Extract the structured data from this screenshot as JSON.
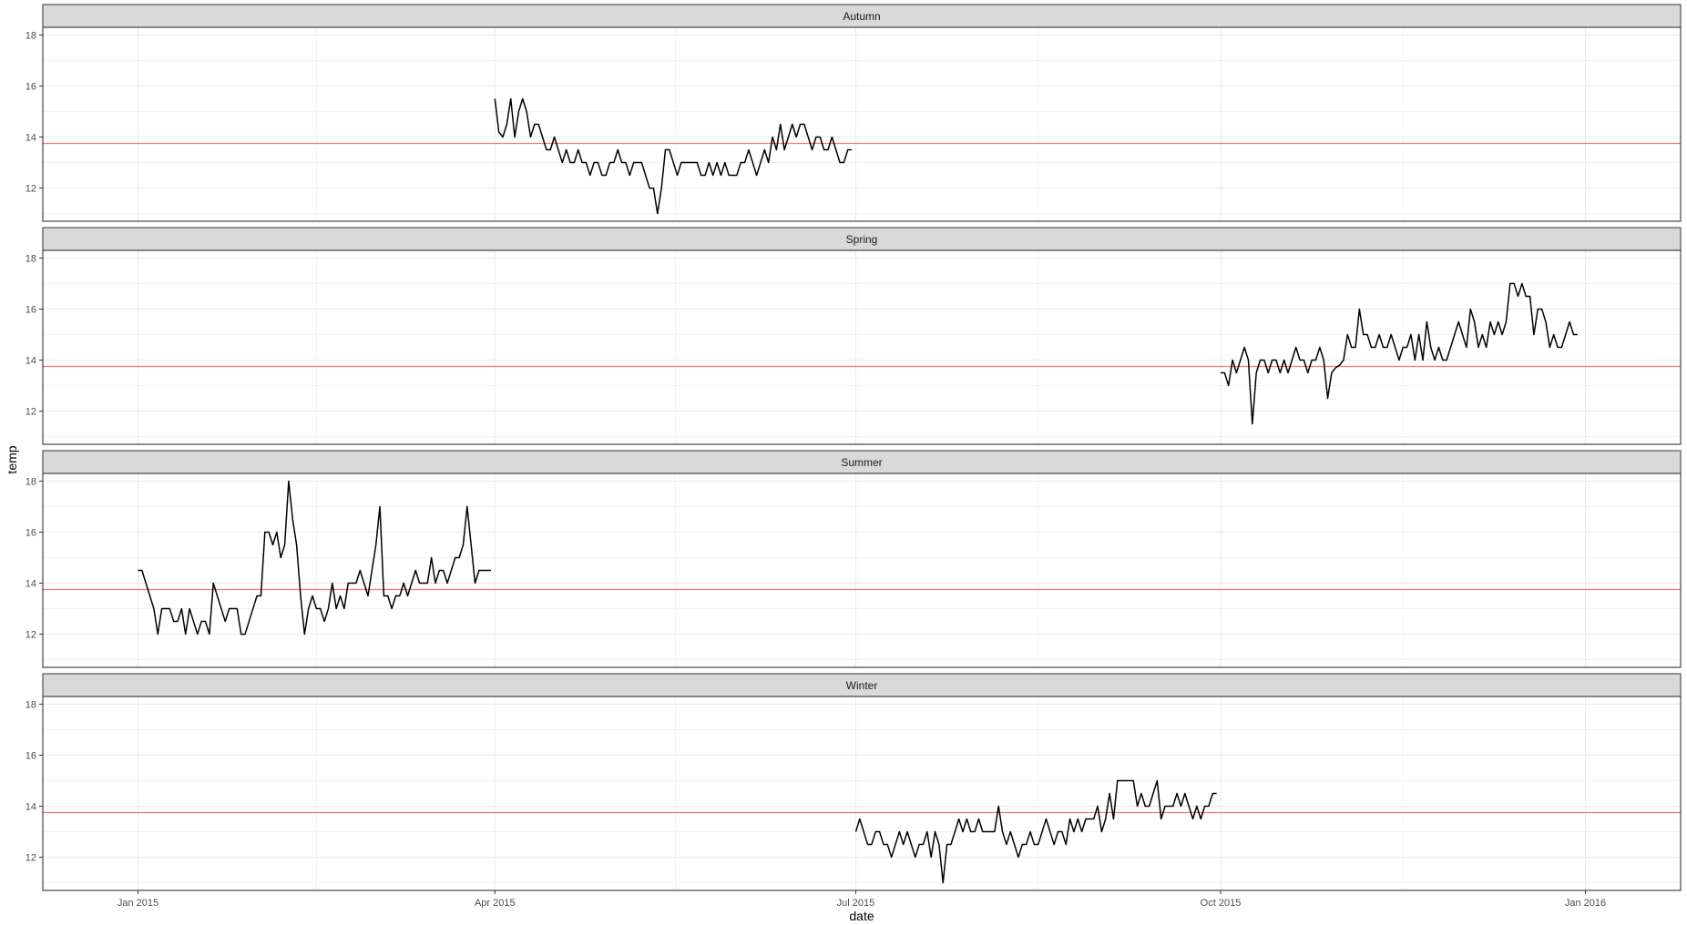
{
  "chart_data": {
    "type": "line",
    "facet_by": "season",
    "xlabel": "date",
    "ylabel": "temp",
    "x_ticks": [
      "Jan 2015",
      "Apr 2015",
      "Jul 2015",
      "Oct 2015",
      "Jan 2016"
    ],
    "x_tick_dates": [
      "2015-01-01",
      "2015-04-01",
      "2015-07-01",
      "2015-10-01",
      "2016-01-01"
    ],
    "xlim": [
      "2014-12-08",
      "2016-01-25"
    ],
    "y_ticks": [
      12,
      14,
      16,
      18
    ],
    "ylim": [
      10.7,
      18.3
    ],
    "reference_line": {
      "y": 13.75,
      "color": "#f8766d"
    },
    "line_color": "#000000",
    "grid": true,
    "panels": [
      {
        "label": "Autumn",
        "start": "2015-04-01",
        "values": [
          15.5,
          14.2,
          14.0,
          14.5,
          15.5,
          14.0,
          15.0,
          15.5,
          15.0,
          14.0,
          14.5,
          14.5,
          14.0,
          13.5,
          13.5,
          14.0,
          13.5,
          13.0,
          13.5,
          13.0,
          13.0,
          13.5,
          13.0,
          13.0,
          12.5,
          13.0,
          13.0,
          12.5,
          12.5,
          13.0,
          13.0,
          13.5,
          13.0,
          13.0,
          12.5,
          13.0,
          13.0,
          13.0,
          12.5,
          12.0,
          12.0,
          11.0,
          12.0,
          13.5,
          13.5,
          13.0,
          12.5,
          13.0,
          13.0,
          13.0,
          13.0,
          13.0,
          12.5,
          12.5,
          13.0,
          12.5,
          13.0,
          12.5,
          13.0,
          12.5,
          12.5,
          12.5,
          13.0,
          13.0,
          13.5,
          13.0,
          12.5,
          13.0,
          13.5,
          13.0,
          14.0,
          13.5,
          14.5,
          13.5,
          14.0,
          14.5,
          14.0,
          14.5,
          14.5,
          14.0,
          13.5,
          14.0,
          14.0,
          13.5,
          13.5,
          14.0,
          13.5,
          13.0,
          13.0,
          13.5,
          13.5
        ]
      },
      {
        "label": "Spring",
        "start": "2015-10-01",
        "values": [
          13.5,
          13.5,
          13.0,
          14.0,
          13.5,
          14.0,
          14.5,
          14.0,
          11.5,
          13.5,
          14.0,
          14.0,
          13.5,
          14.0,
          14.0,
          13.5,
          14.0,
          13.5,
          14.0,
          14.5,
          14.0,
          14.0,
          13.5,
          14.0,
          14.0,
          14.5,
          14.0,
          12.5,
          13.5,
          13.7,
          13.8,
          14.0,
          15.0,
          14.5,
          14.5,
          16.0,
          15.0,
          15.0,
          14.5,
          14.5,
          15.0,
          14.5,
          14.5,
          15.0,
          14.5,
          14.0,
          14.5,
          14.5,
          15.0,
          14.0,
          15.0,
          14.0,
          15.5,
          14.5,
          14.0,
          14.5,
          14.0,
          14.0,
          14.5,
          15.0,
          15.5,
          15.0,
          14.5,
          16.0,
          15.5,
          14.5,
          15.0,
          14.5,
          15.5,
          15.0,
          15.5,
          15.0,
          15.5,
          17.0,
          17.0,
          16.5,
          17.0,
          16.5,
          16.5,
          15.0,
          16.0,
          16.0,
          15.5,
          14.5,
          15.0,
          14.5,
          14.5,
          15.0,
          15.5,
          15.0,
          15.0
        ]
      },
      {
        "label": "Summer",
        "start": "2015-01-01",
        "values": [
          14.5,
          14.5,
          14.0,
          13.5,
          13.0,
          12.0,
          13.0,
          13.0,
          13.0,
          12.5,
          12.5,
          13.0,
          12.0,
          13.0,
          12.5,
          12.0,
          12.5,
          12.5,
          12.0,
          14.0,
          13.5,
          13.0,
          12.5,
          13.0,
          13.0,
          13.0,
          12.0,
          12.0,
          12.5,
          13.0,
          13.5,
          13.5,
          16.0,
          16.0,
          15.5,
          16.0,
          15.0,
          15.5,
          18.0,
          16.5,
          15.5,
          13.5,
          12.0,
          13.0,
          13.5,
          13.0,
          13.0,
          12.5,
          13.0,
          14.0,
          13.0,
          13.5,
          13.0,
          14.0,
          14.0,
          14.0,
          14.5,
          14.0,
          13.5,
          14.5,
          15.5,
          17.0,
          13.5,
          13.5,
          13.0,
          13.5,
          13.5,
          14.0,
          13.5,
          14.0,
          14.5,
          14.0,
          14.0,
          14.0,
          15.0,
          14.0,
          14.5,
          14.5,
          14.0,
          14.5,
          15.0,
          15.0,
          15.5,
          17.0,
          15.5,
          14.0,
          14.5,
          14.5,
          14.5,
          14.5
        ]
      },
      {
        "label": "Winter",
        "start": "2015-07-01",
        "values": [
          13.0,
          13.5,
          13.0,
          12.5,
          12.5,
          13.0,
          13.0,
          12.5,
          12.5,
          12.0,
          12.5,
          13.0,
          12.5,
          13.0,
          12.5,
          12.0,
          12.5,
          12.5,
          13.0,
          12.0,
          13.0,
          12.5,
          11.0,
          12.5,
          12.5,
          13.0,
          13.5,
          13.0,
          13.5,
          13.0,
          13.0,
          13.5,
          13.0,
          13.0,
          13.0,
          13.0,
          14.0,
          13.0,
          12.5,
          13.0,
          12.5,
          12.0,
          12.5,
          12.5,
          13.0,
          12.5,
          12.5,
          13.0,
          13.5,
          13.0,
          12.5,
          13.0,
          13.0,
          12.5,
          13.5,
          13.0,
          13.5,
          13.0,
          13.5,
          13.5,
          13.5,
          14.0,
          13.0,
          13.5,
          14.5,
          13.5,
          15.0,
          15.0,
          15.0,
          15.0,
          15.0,
          14.0,
          14.5,
          14.0,
          14.0,
          14.5,
          15.0,
          13.5,
          14.0,
          14.0,
          14.0,
          14.5,
          14.0,
          14.5,
          14.0,
          13.5,
          14.0,
          13.5,
          14.0,
          14.0,
          14.5,
          14.5
        ]
      }
    ]
  }
}
